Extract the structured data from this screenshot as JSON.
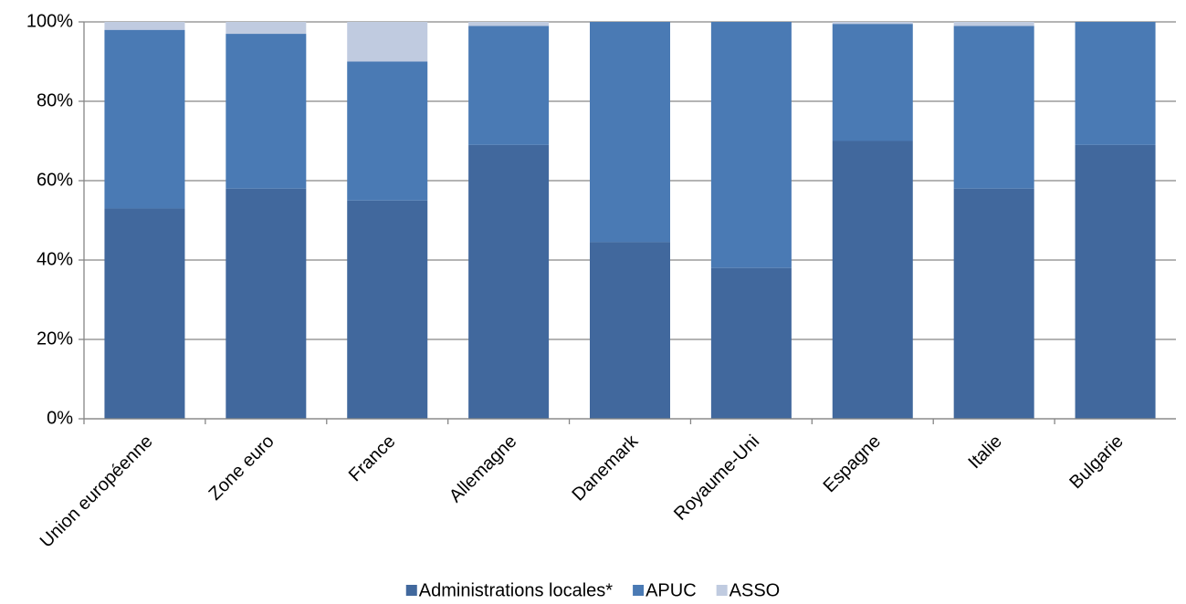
{
  "chart_data": {
    "type": "stacked-bar",
    "categories": [
      "Union européenne",
      "Zone euro",
      "France",
      "Allemagne",
      "Danemark",
      "Royaume-Uni",
      "Espagne",
      "Italie",
      "Bulgarie"
    ],
    "series": [
      {
        "name": "Administrations locales*",
        "color": "#41689d",
        "values": [
          53,
          58,
          55,
          69,
          44.5,
          38,
          70,
          58,
          69
        ]
      },
      {
        "name": "APUC",
        "color": "#4a7ab4",
        "values": [
          45,
          39,
          35,
          30,
          55.5,
          62,
          29.5,
          41,
          31
        ]
      },
      {
        "name": "ASSO",
        "color": "#c0cbe0",
        "values": [
          2,
          3,
          10,
          1,
          0,
          0,
          0.5,
          1,
          0
        ]
      }
    ],
    "ylim": [
      0,
      100
    ],
    "yticks": [
      {
        "value": 0,
        "label": "0%"
      },
      {
        "value": 20,
        "label": "20%"
      },
      {
        "value": 40,
        "label": "40%"
      },
      {
        "value": 60,
        "label": "60%"
      },
      {
        "value": 80,
        "label": "80%"
      },
      {
        "value": 100,
        "label": "100%"
      }
    ],
    "grid": true
  }
}
